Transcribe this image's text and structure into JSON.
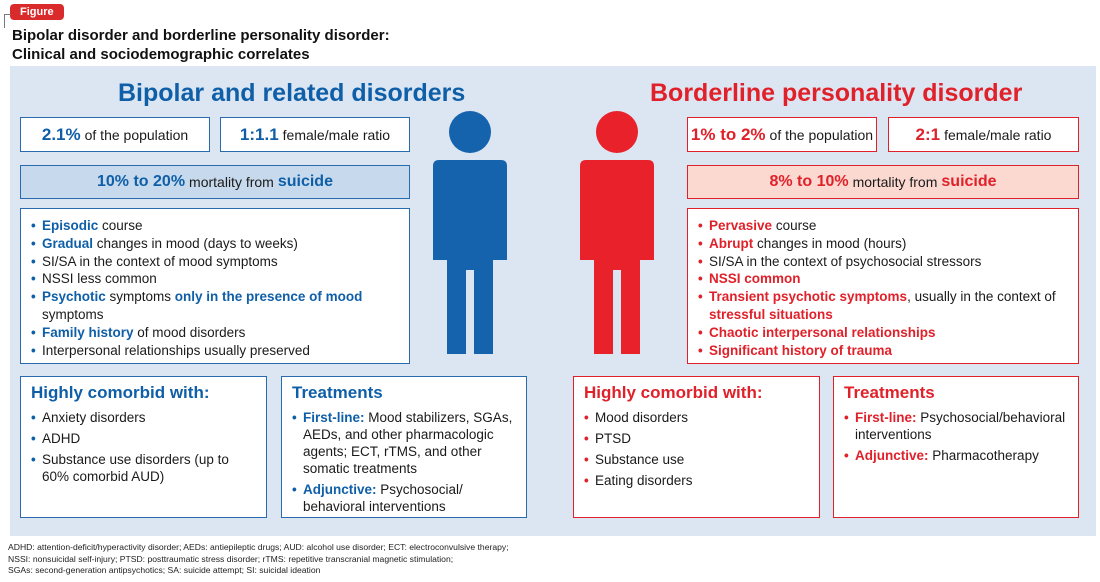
{
  "header": {
    "tag": "Figure",
    "title_line1": "Bipolar disorder and borderline personality disorder:",
    "title_line2": "Clinical and sociodemographic correlates"
  },
  "colors": {
    "blue": "#0f5fa8",
    "red": "#e0212a",
    "panel_bg": "#dce6f2"
  },
  "bipolar": {
    "heading": "Bipolar and related disorders",
    "prevalence": {
      "num": "2.1%",
      "text": "of the population"
    },
    "ratio": {
      "num": "1:1.1",
      "text": "female/male ratio"
    },
    "mortality": {
      "num": "10% to 20%",
      "mid": "mortality from",
      "kw": "suicide"
    },
    "features": [
      {
        "h": "Episodic",
        "t": " course"
      },
      {
        "h": "Gradual",
        "t": " changes in mood (days to weeks)"
      },
      {
        "h": "",
        "t": "SI/SA in the context of mood symptoms"
      },
      {
        "h": "",
        "t": "NSSI less common"
      },
      {
        "h": "Psychotic",
        "t": " symptoms ",
        "h2": "only in the presence of mood",
        "t2": " symptoms"
      },
      {
        "h": "Family history",
        "t": " of mood disorders"
      },
      {
        "h": "",
        "t": "Interpersonal relationships usually preserved"
      }
    ],
    "comorbid": {
      "title": "Highly comorbid with:",
      "items": [
        "Anxiety disorders",
        "ADHD",
        "Substance use disorders (up to 60% comorbid AUD)"
      ]
    },
    "treatments": {
      "title": "Treatments",
      "items": [
        {
          "h": "First-line:",
          "t": " Mood stabilizers, SGAs, AEDs, and other pharmacologic agents; ECT, rTMS, and other somatic treatments"
        },
        {
          "h": "Adjunctive:",
          "t": " Psychosocial/ behavioral interventions"
        }
      ]
    },
    "figure_icon": "person-icon"
  },
  "borderline": {
    "heading": "Borderline personality disorder",
    "prevalence": {
      "num": "1% to 2%",
      "text": "of the population"
    },
    "ratio": {
      "num": "2:1",
      "text": "female/male ratio"
    },
    "mortality": {
      "num": "8% to 10%",
      "mid": "mortality from",
      "kw": "suicide"
    },
    "features": [
      {
        "h": "Pervasive",
        "t": " course"
      },
      {
        "h": "Abrupt",
        "t": " changes in mood (hours)"
      },
      {
        "h": "",
        "t": "SI/SA in the context of psychosocial stressors"
      },
      {
        "h": "NSSI common",
        "t": ""
      },
      {
        "h": "Transient psychotic symptoms",
        "t": ", usually in the context of ",
        "h2": "stressful situations",
        "t2": ""
      },
      {
        "h": "Chaotic interpersonal relationships",
        "t": ""
      },
      {
        "h": "Significant history of trauma",
        "t": ""
      }
    ],
    "comorbid": {
      "title": "Highly comorbid with:",
      "items": [
        "Mood disorders",
        "PTSD",
        "Substance use",
        "Eating disorders"
      ]
    },
    "treatments": {
      "title": "Treatments",
      "items": [
        {
          "h": "First-line:",
          "t": " Psychosocial/behavioral interventions"
        },
        {
          "h": "Adjunctive:",
          "t": " Pharmacotherapy"
        }
      ]
    },
    "figure_icon": "person-icon"
  },
  "footnote": [
    "ADHD: attention-deficit/hyperactivity disorder; AEDs: antiepileptic drugs; AUD: alcohol use disorder; ECT: electroconvulsive therapy;",
    "NSSI: nonsuicidal self-injury; PTSD: posttraumatic stress disorder; rTMS: repetitive transcranial magnetic stimulation;",
    "SGAs: second-generation antipsychotics; SA: suicide attempt; SI: suicidal ideation"
  ]
}
